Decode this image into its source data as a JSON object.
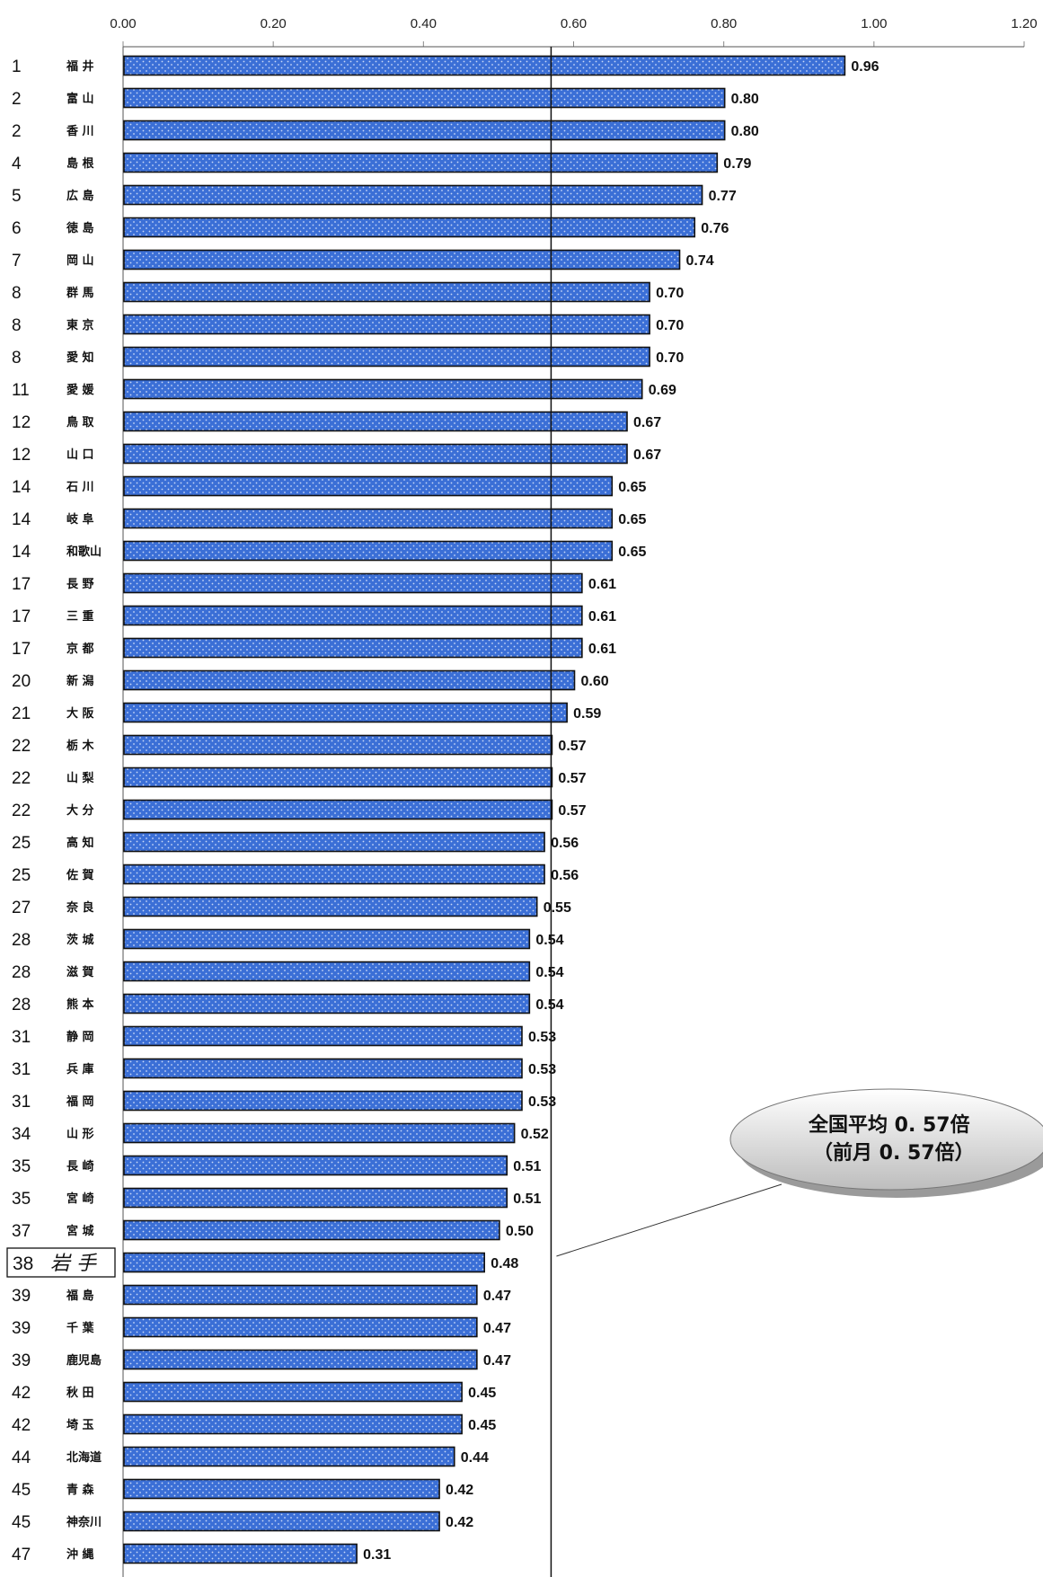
{
  "chart_data": {
    "type": "bar",
    "orientation": "horizontal",
    "xlim": [
      0,
      1.2
    ],
    "x_ticks": [
      "0.00",
      "0.20",
      "0.40",
      "0.60",
      "0.80",
      "1.00",
      "1.20"
    ],
    "reference_value": 0.57,
    "highlight_rank": "38",
    "colors": {
      "bar": "#3b6fd6",
      "bar_dot": "#c9d9f7",
      "outline": "#111111"
    },
    "rows": [
      {
        "rank": "1",
        "name": "福 井",
        "value": 0.96,
        "label": "0.96"
      },
      {
        "rank": "2",
        "name": "富 山",
        "value": 0.8,
        "label": "0.80"
      },
      {
        "rank": "2",
        "name": "香 川",
        "value": 0.8,
        "label": "0.80"
      },
      {
        "rank": "4",
        "name": "島 根",
        "value": 0.79,
        "label": "0.79"
      },
      {
        "rank": "5",
        "name": "広 島",
        "value": 0.77,
        "label": "0.77"
      },
      {
        "rank": "6",
        "name": "徳 島",
        "value": 0.76,
        "label": "0.76"
      },
      {
        "rank": "7",
        "name": "岡 山",
        "value": 0.74,
        "label": "0.74"
      },
      {
        "rank": "8",
        "name": "群 馬",
        "value": 0.7,
        "label": "0.70"
      },
      {
        "rank": "8",
        "name": "東 京",
        "value": 0.7,
        "label": "0.70"
      },
      {
        "rank": "8",
        "name": "愛 知",
        "value": 0.7,
        "label": "0.70"
      },
      {
        "rank": "11",
        "name": "愛 媛",
        "value": 0.69,
        "label": "0.69"
      },
      {
        "rank": "12",
        "name": "鳥 取",
        "value": 0.67,
        "label": "0.67"
      },
      {
        "rank": "12",
        "name": "山 口",
        "value": 0.67,
        "label": "0.67"
      },
      {
        "rank": "14",
        "name": "石 川",
        "value": 0.65,
        "label": "0.65"
      },
      {
        "rank": "14",
        "name": "岐 阜",
        "value": 0.65,
        "label": "0.65"
      },
      {
        "rank": "14",
        "name": "和歌山",
        "value": 0.65,
        "label": "0.65"
      },
      {
        "rank": "17",
        "name": "長 野",
        "value": 0.61,
        "label": "0.61"
      },
      {
        "rank": "17",
        "name": "三 重",
        "value": 0.61,
        "label": "0.61"
      },
      {
        "rank": "17",
        "name": "京 都",
        "value": 0.61,
        "label": "0.61"
      },
      {
        "rank": "20",
        "name": "新 潟",
        "value": 0.6,
        "label": "0.60"
      },
      {
        "rank": "21",
        "name": "大 阪",
        "value": 0.59,
        "label": "0.59"
      },
      {
        "rank": "22",
        "name": "栃 木",
        "value": 0.57,
        "label": "0.57"
      },
      {
        "rank": "22",
        "name": "山 梨",
        "value": 0.57,
        "label": "0.57"
      },
      {
        "rank": "22",
        "name": "大 分",
        "value": 0.57,
        "label": "0.57"
      },
      {
        "rank": "25",
        "name": "高 知",
        "value": 0.56,
        "label": "0.56"
      },
      {
        "rank": "25",
        "name": "佐 賀",
        "value": 0.56,
        "label": "0.56"
      },
      {
        "rank": "27",
        "name": "奈 良",
        "value": 0.55,
        "label": "0.55"
      },
      {
        "rank": "28",
        "name": "茨 城",
        "value": 0.54,
        "label": "0.54"
      },
      {
        "rank": "28",
        "name": "滋 賀",
        "value": 0.54,
        "label": "0.54"
      },
      {
        "rank": "28",
        "name": "熊 本",
        "value": 0.54,
        "label": "0.54"
      },
      {
        "rank": "31",
        "name": "静 岡",
        "value": 0.53,
        "label": "0.53"
      },
      {
        "rank": "31",
        "name": "兵 庫",
        "value": 0.53,
        "label": "0.53"
      },
      {
        "rank": "31",
        "name": "福 岡",
        "value": 0.53,
        "label": "0.53"
      },
      {
        "rank": "34",
        "name": "山 形",
        "value": 0.52,
        "label": "0.52"
      },
      {
        "rank": "35",
        "name": "長 崎",
        "value": 0.51,
        "label": "0.51"
      },
      {
        "rank": "35",
        "name": "宮 崎",
        "value": 0.51,
        "label": "0.51"
      },
      {
        "rank": "37",
        "name": "宮 城",
        "value": 0.5,
        "label": "0.50"
      },
      {
        "rank": "38",
        "name": "岩 手",
        "value": 0.48,
        "label": "0.48"
      },
      {
        "rank": "39",
        "name": "福 島",
        "value": 0.47,
        "label": "0.47"
      },
      {
        "rank": "39",
        "name": "千 葉",
        "value": 0.47,
        "label": "0.47"
      },
      {
        "rank": "39",
        "name": "鹿児島",
        "value": 0.47,
        "label": "0.47"
      },
      {
        "rank": "42",
        "name": "秋 田",
        "value": 0.45,
        "label": "0.45"
      },
      {
        "rank": "42",
        "name": "埼 玉",
        "value": 0.45,
        "label": "0.45"
      },
      {
        "rank": "44",
        "name": "北海道",
        "value": 0.44,
        "label": "0.44"
      },
      {
        "rank": "45",
        "name": "青 森",
        "value": 0.42,
        "label": "0.42"
      },
      {
        "rank": "45",
        "name": "神奈川",
        "value": 0.42,
        "label": "0.42"
      },
      {
        "rank": "47",
        "name": "沖 縄",
        "value": 0.31,
        "label": "0.31"
      }
    ],
    "callout": {
      "line1": "全国平均 0. 57倍",
      "line2": "（前月 0. 57倍）"
    }
  }
}
